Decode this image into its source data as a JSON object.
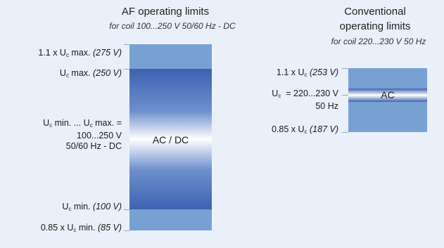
{
  "left": {
    "title": "AF operating limits",
    "subtitle": "for coil 100...250 V 50/60 Hz - DC",
    "box_label": "AC / DC",
    "levels": {
      "top_prefix": "1.1 x U",
      "top_sub": "c",
      "top_mid": " max. ",
      "top_value": "(275 V)",
      "max_prefix": "U",
      "max_sub": "c",
      "max_mid": " max. ",
      "max_value": "(250 V)",
      "range_line1_a": "U",
      "range_line1_sub1": "c",
      "range_line1_b": " min. ... U",
      "range_line1_sub2": "c",
      "range_line1_c": " max. =",
      "range_line2": "100...250 V",
      "range_line3": "50/60 Hz - DC",
      "min_prefix": "U",
      "min_sub": "c",
      "min_mid": " min. ",
      "min_value": "(100 V)",
      "bottom_prefix": "0.85 x U",
      "bottom_sub": "c",
      "bottom_mid": " min. ",
      "bottom_value": "(85 V)"
    }
  },
  "right": {
    "title_line1": "Conventional",
    "title_line2": "operating limits",
    "subtitle": "for coil 220...230 V 50 Hz",
    "box_label": "AC",
    "levels": {
      "top_prefix": "1.1 x U",
      "top_sub": "c",
      "top_value": " (253 V)",
      "nominal_prefix": "U",
      "nominal_sub": "c",
      "nominal_value": "  = 220...230 V",
      "nominal_freq": "50 Hz",
      "bottom_prefix": "0.85 x U",
      "bottom_sub": "c",
      "bottom_value": " (187 V)"
    }
  },
  "colors": {
    "background": "#e9f0f9",
    "band": "#78a1d3",
    "gradient_dark": "#3e62b0",
    "gradient_light": "#ffffff"
  }
}
